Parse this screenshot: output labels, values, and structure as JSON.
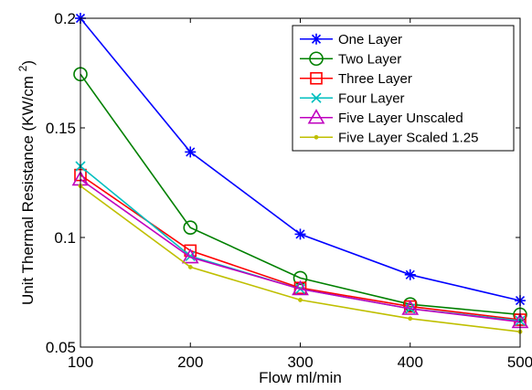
{
  "chart_data": {
    "type": "line",
    "title": "",
    "xlabel": "Flow ml/min",
    "ylabel": "Unit Thermal Resistance (KW/cm²)",
    "x": [
      100,
      200,
      300,
      400,
      500
    ],
    "xlim": [
      100,
      500
    ],
    "ylim": [
      0.05,
      0.2
    ],
    "xticks": [
      100,
      200,
      300,
      400,
      500
    ],
    "yticks": [
      0.05,
      0.1,
      0.15,
      0.2
    ],
    "x_tick_labels": [
      "100",
      "200",
      "300",
      "400",
      "500"
    ],
    "y_tick_labels": [
      "0.05",
      "0.1",
      "0.15",
      "0.2"
    ],
    "grid": false,
    "legend_position": "top-right",
    "series": [
      {
        "name": "One Layer",
        "color": "#0000ff",
        "marker": "asterisk",
        "values": [
          0.2,
          0.139,
          0.1015,
          0.083,
          0.0712
        ]
      },
      {
        "name": "Two Layer",
        "color": "#008000",
        "marker": "circle",
        "values": [
          0.1745,
          0.1045,
          0.0815,
          0.0695,
          0.0648
        ]
      },
      {
        "name": "Three Layer",
        "color": "#ff0000",
        "marker": "square",
        "values": [
          0.1285,
          0.094,
          0.077,
          0.0685,
          0.0625
        ]
      },
      {
        "name": "Four Layer",
        "color": "#00bfbf",
        "marker": "x",
        "values": [
          0.1325,
          0.0915,
          0.0765,
          0.0675,
          0.062
        ]
      },
      {
        "name": "Five Layer Unscaled",
        "color": "#bf00bf",
        "marker": "triangle",
        "values": [
          0.1265,
          0.091,
          0.0765,
          0.0675,
          0.0615
        ]
      },
      {
        "name": "Five Layer Scaled 1.25",
        "color": "#bfbf00",
        "marker": "dot",
        "values": [
          0.1235,
          0.0865,
          0.0715,
          0.063,
          0.057
        ]
      }
    ]
  }
}
